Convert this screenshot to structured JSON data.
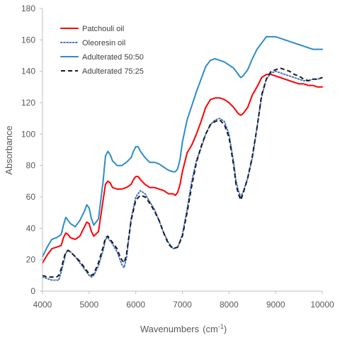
{
  "chart_data": {
    "type": "line",
    "title": "",
    "xlabel": "Wavenumbers",
    "xlabel_unit": "(cm",
    "xlabel_unit_sup": "-1",
    "xlabel_unit_close": ")",
    "ylabel": "Absorbance",
    "xlim": [
      4000,
      10000
    ],
    "ylim": [
      0,
      180
    ],
    "xticks": [
      4000,
      5000,
      6000,
      7000,
      8000,
      9000,
      10000
    ],
    "yticks": [
      0,
      20,
      40,
      60,
      80,
      100,
      120,
      140,
      160,
      180
    ],
    "grid": false,
    "legend_position": "top-left",
    "series": [
      {
        "name": "Patchouli oil",
        "color": "#ff0000",
        "dash": "solid",
        "x": [
          4000,
          4100,
          4200,
          4300,
          4400,
          4450,
          4500,
          4550,
          4600,
          4700,
          4800,
          4900,
          4950,
          5000,
          5050,
          5100,
          5200,
          5300,
          5350,
          5400,
          5450,
          5500,
          5600,
          5700,
          5800,
          5900,
          5950,
          6000,
          6050,
          6100,
          6200,
          6300,
          6400,
          6500,
          6600,
          6700,
          6800,
          6850,
          6900,
          6950,
          7000,
          7100,
          7200,
          7300,
          7400,
          7500,
          7600,
          7700,
          7800,
          7900,
          8000,
          8100,
          8200,
          8250,
          8300,
          8400,
          8500,
          8600,
          8700,
          8800,
          8900,
          9000,
          9100,
          9200,
          9300,
          9400,
          9500,
          9600,
          9700,
          9800,
          9900,
          10000
        ],
        "y": [
          18,
          23,
          27,
          28,
          29,
          34,
          37,
          36,
          34,
          33,
          35,
          41,
          44,
          43,
          38,
          35,
          38,
          58,
          68,
          70,
          69,
          66,
          65,
          65,
          66,
          68,
          71,
          73,
          73,
          71,
          68,
          66,
          66,
          65,
          64,
          62,
          62,
          61,
          63,
          68,
          76,
          88,
          93,
          100,
          108,
          117,
          122,
          123,
          123,
          122,
          120,
          117,
          113,
          112,
          113,
          117,
          125,
          130,
          136,
          138,
          138,
          137,
          136,
          135,
          134,
          133,
          132,
          132,
          131,
          131,
          130,
          130
        ]
      },
      {
        "name": "Oleoresin oil",
        "color": "#4472c4",
        "dash": "dotted",
        "x": [
          4000,
          4100,
          4200,
          4300,
          4350,
          4400,
          4450,
          4500,
          4550,
          4600,
          4700,
          4800,
          4900,
          5000,
          5050,
          5100,
          5200,
          5300,
          5350,
          5400,
          5450,
          5500,
          5600,
          5650,
          5700,
          5750,
          5800,
          5900,
          6000,
          6100,
          6200,
          6300,
          6400,
          6500,
          6600,
          6700,
          6800,
          6900,
          7000,
          7100,
          7200,
          7300,
          7400,
          7500,
          7600,
          7700,
          7800,
          7900,
          8000,
          8100,
          8150,
          8200,
          8250,
          8300,
          8400,
          8500,
          8600,
          8700,
          8800,
          8900,
          9000,
          9100,
          9200,
          9300,
          9400,
          9500,
          9600,
          9700,
          9800,
          9900,
          10000
        ],
        "y": [
          9,
          8,
          7,
          7,
          7,
          12,
          18,
          24,
          26,
          25,
          22,
          18,
          14,
          10,
          9,
          10,
          16,
          26,
          33,
          34,
          32,
          30,
          25,
          21,
          17,
          15,
          21,
          46,
          60,
          64,
          62,
          57,
          52,
          45,
          37,
          31,
          27,
          28,
          36,
          52,
          70,
          83,
          91,
          100,
          106,
          109,
          110,
          108,
          100,
          82,
          70,
          64,
          60,
          63,
          72,
          85,
          104,
          124,
          135,
          139,
          140,
          139,
          138,
          137,
          136,
          135,
          134,
          134,
          135,
          135,
          136
        ]
      },
      {
        "name": "Adulterated 50:50",
        "color": "#2e8bc9",
        "dash": "solid",
        "x": [
          4000,
          4100,
          4200,
          4300,
          4400,
          4450,
          4500,
          4550,
          4600,
          4700,
          4800,
          4900,
          4950,
          5000,
          5050,
          5100,
          5200,
          5300,
          5350,
          5400,
          5450,
          5500,
          5600,
          5700,
          5800,
          5900,
          5950,
          6000,
          6050,
          6100,
          6200,
          6300,
          6400,
          6500,
          6600,
          6700,
          6800,
          6850,
          6900,
          6950,
          7000,
          7100,
          7200,
          7300,
          7400,
          7500,
          7600,
          7700,
          7800,
          7900,
          8000,
          8100,
          8200,
          8250,
          8300,
          8400,
          8500,
          8600,
          8700,
          8800,
          8900,
          9000,
          9100,
          9200,
          9300,
          9400,
          9500,
          9600,
          9700,
          9800,
          9900,
          10000
        ],
        "y": [
          22,
          28,
          33,
          34,
          36,
          42,
          47,
          45,
          43,
          41,
          45,
          51,
          55,
          53,
          46,
          42,
          46,
          70,
          86,
          89,
          87,
          83,
          80,
          80,
          82,
          85,
          89,
          92,
          92,
          89,
          85,
          82,
          82,
          81,
          79,
          77,
          76,
          76,
          78,
          84,
          95,
          109,
          118,
          127,
          135,
          143,
          147,
          148,
          147,
          146,
          144,
          142,
          138,
          136,
          137,
          141,
          148,
          154,
          158,
          162,
          162,
          162,
          161,
          160,
          159,
          158,
          157,
          156,
          155,
          154,
          154,
          154
        ]
      },
      {
        "name": "Adulterated 75:25",
        "color": "#1a1a1a",
        "dash": "dashed",
        "x": [
          4000,
          4100,
          4200,
          4300,
          4350,
          4400,
          4450,
          4500,
          4550,
          4600,
          4700,
          4800,
          4900,
          5000,
          5050,
          5100,
          5200,
          5300,
          5350,
          5400,
          5450,
          5500,
          5600,
          5650,
          5700,
          5750,
          5800,
          5900,
          6000,
          6100,
          6200,
          6300,
          6400,
          6500,
          6600,
          6700,
          6800,
          6900,
          7000,
          7100,
          7200,
          7300,
          7400,
          7500,
          7600,
          7700,
          7800,
          7900,
          8000,
          8100,
          8150,
          8200,
          8250,
          8300,
          8400,
          8500,
          8600,
          8700,
          8800,
          8900,
          9000,
          9100,
          9200,
          9300,
          9400,
          9500,
          9600,
          9700,
          9800,
          9900,
          10000
        ],
        "y": [
          10,
          9,
          9,
          9,
          10,
          14,
          20,
          25,
          26,
          25,
          22,
          19,
          15,
          11,
          10,
          11,
          18,
          28,
          34,
          35,
          33,
          31,
          27,
          23,
          20,
          18,
          23,
          45,
          58,
          61,
          60,
          56,
          51,
          45,
          37,
          30,
          27,
          28,
          35,
          50,
          67,
          82,
          92,
          100,
          106,
          108,
          109,
          106,
          98,
          80,
          68,
          62,
          58,
          62,
          72,
          86,
          104,
          125,
          135,
          140,
          141,
          142,
          141,
          140,
          138,
          137,
          135,
          134,
          135,
          135,
          136
        ]
      }
    ]
  }
}
